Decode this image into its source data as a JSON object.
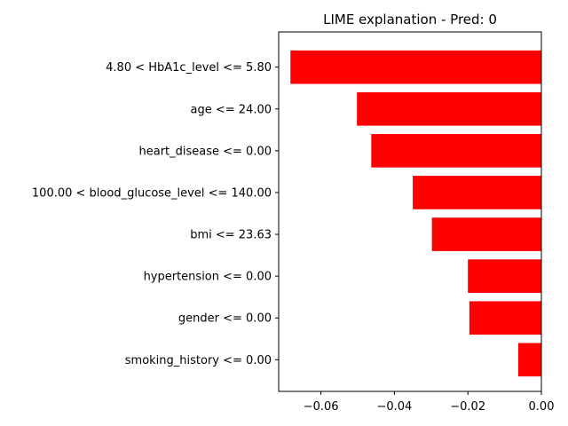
{
  "chart_data": {
    "type": "bar",
    "orientation": "horizontal",
    "title": "LIME explanation - Pred: 0",
    "xlabel": "",
    "ylabel": "",
    "categories": [
      "4.80 < HbA1c_level <= 5.80",
      "age <= 24.00",
      "heart_disease <= 0.00",
      "100.00 < blood_glucose_level <= 140.00",
      "bmi <= 23.63",
      "hypertension <= 0.00",
      "gender <= 0.00",
      "smoking_history <= 0.00"
    ],
    "values": [
      -0.0683,
      -0.0502,
      -0.0463,
      -0.035,
      -0.0298,
      -0.02,
      -0.0196,
      -0.0063
    ],
    "xlim": [
      -0.0715,
      0.0
    ],
    "xticks": [
      -0.06,
      -0.04,
      -0.02,
      0.0
    ],
    "xtick_labels": [
      "−0.06",
      "−0.04",
      "−0.02",
      "0.00"
    ],
    "bar_color": "#ff0000",
    "grid": false,
    "legend": "none"
  }
}
